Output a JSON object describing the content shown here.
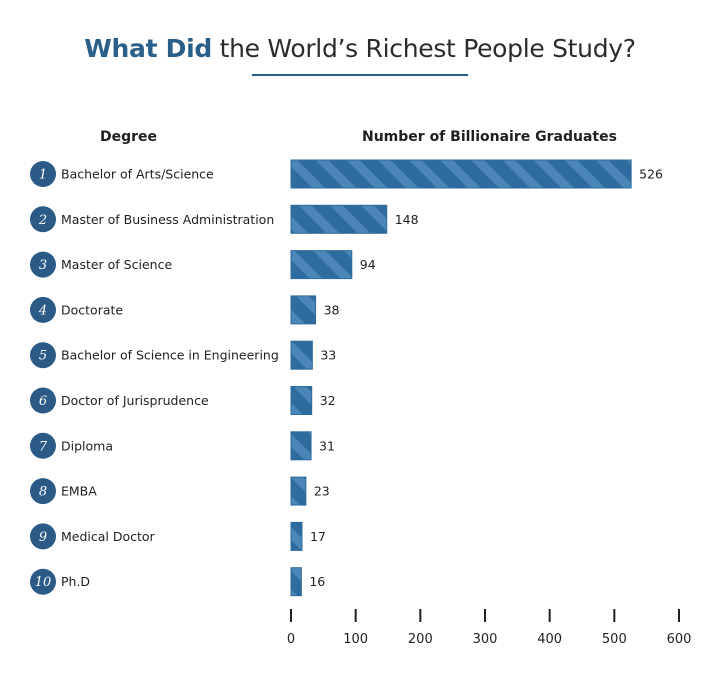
{
  "title": {
    "accent": "What Did",
    "rest": " the World’s Richest People Study?"
  },
  "colors": {
    "accent": "#2a5f8a",
    "bar": "#2e6b9e",
    "bar_stripe": "#4a86b8",
    "circle": "#2a5a85"
  },
  "chart_data": {
    "type": "bar",
    "orientation": "horizontal",
    "category_header": "Degree",
    "value_header": "Number of Billionaire Graduates",
    "ranks": [
      "1",
      "2",
      "3",
      "4",
      "5",
      "6",
      "7",
      "8",
      "9",
      "10"
    ],
    "categories": [
      "Bachelor of Arts/Science",
      "Master of Business Administration",
      "Master of Science",
      "Doctorate",
      "Bachelor of Science in Engineering",
      "Doctor of Jurisprudence",
      "Diploma",
      "EMBA",
      "Medical Doctor",
      "Ph.D"
    ],
    "values": [
      526,
      148,
      94,
      38,
      33,
      32,
      31,
      23,
      17,
      16
    ],
    "value_labels": [
      "526",
      "148",
      "94",
      "38",
      "33",
      "32",
      "31",
      "23",
      "17",
      "16"
    ],
    "xlim": [
      0,
      600
    ],
    "xticks": [
      0,
      100,
      200,
      300,
      400,
      500,
      600
    ],
    "xtick_labels": [
      "0",
      "100",
      "200",
      "300",
      "400",
      "500",
      "600"
    ],
    "grid": false,
    "legend": "none"
  }
}
